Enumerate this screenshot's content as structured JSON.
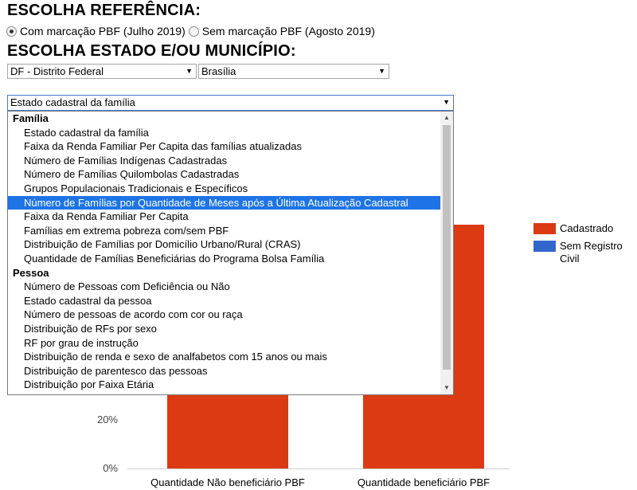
{
  "header": {
    "ref_title": "ESCOLHA REFERÊNCIA:",
    "estado_title": "ESCOLHA ESTADO E/OU MUNICÍPIO:"
  },
  "reference": {
    "options": [
      {
        "label": "Com marcação PBF (Julho 2019)",
        "checked": true
      },
      {
        "label": "Sem marcação PBF (Agosto 2019)",
        "checked": false
      }
    ]
  },
  "location": {
    "uf": "DF - Distrito Federal",
    "municipio": "Brasília"
  },
  "indicator": {
    "selected": "Estado cadastral da família",
    "groups": [
      {
        "label": "Família",
        "options": [
          "Estado cadastral da família",
          "Faixa da Renda Familiar Per Capita das famílias atualizadas",
          "Número de Famílias Indígenas Cadastradas",
          "Número de Famílias Quilombolas Cadastradas",
          "Grupos Populacionais Tradicionais e Específicos",
          "Número de Famílias por Quantidade de Meses após a Última Atualização Cadastral",
          "Faixa da Renda Familiar Per Capita",
          "Famílias em extrema pobreza com/sem PBF",
          "Distribuição de Famílias por Domicílio Urbano/Rural (CRAS)",
          "Quantidade de Famílias Beneficiárias do Programa Bolsa Família"
        ]
      },
      {
        "label": "Pessoa",
        "options": [
          "Número de Pessoas com Deficiência ou Não",
          "Estado cadastral da pessoa",
          "Número de pessoas de acordo com cor ou raça",
          "Distribuição de RFs por sexo",
          "RF por grau de instrução",
          "Distribuição de renda e sexo de analfabetos com 15 anos ou mais",
          "Distribuição de parentesco das pessoas",
          "Distribuição por Faixa Etária"
        ]
      }
    ],
    "highlighted": "Número de Famílias por Quantidade de Meses após a Última Atualização Cadastral"
  },
  "chart_data": {
    "type": "bar",
    "categories": [
      "Quantidade Não beneficiário PBF",
      "Quantidade beneficiário PBF"
    ],
    "series": [
      {
        "name": "Cadastrado",
        "color": "#dc3a12",
        "values": [
          null,
          null
        ]
      },
      {
        "name": "Sem Registro Civil",
        "color": "#3366cc",
        "values": [
          null,
          null
        ]
      }
    ],
    "yticks": [
      "0%",
      "20%"
    ],
    "legend_position": "right"
  }
}
